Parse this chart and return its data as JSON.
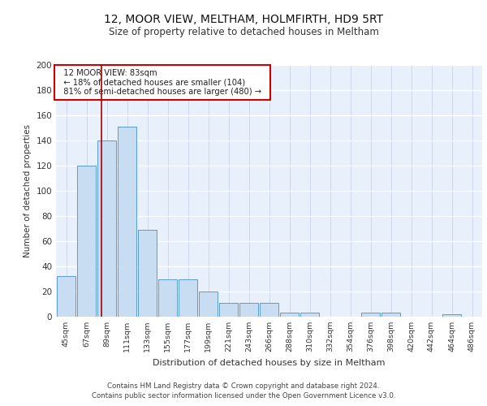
{
  "title1": "12, MOOR VIEW, MELTHAM, HOLMFIRTH, HD9 5RT",
  "title2": "Size of property relative to detached houses in Meltham",
  "xlabel": "Distribution of detached houses by size in Meltham",
  "ylabel": "Number of detached properties",
  "bar_values": [
    32,
    120,
    140,
    151,
    69,
    30,
    30,
    20,
    11,
    11,
    11,
    3,
    3,
    0,
    0,
    3,
    3,
    0,
    0,
    2,
    0
  ],
  "bar_labels": [
    "45sqm",
    "67sqm",
    "89sqm",
    "111sqm",
    "133sqm",
    "155sqm",
    "177sqm",
    "199sqm",
    "221sqm",
    "243sqm",
    "266sqm",
    "288sqm",
    "310sqm",
    "332sqm",
    "354sqm",
    "376sqm",
    "398sqm",
    "420sqm",
    "442sqm",
    "464sqm",
    "486sqm"
  ],
  "bar_color": "#c9ddf2",
  "bar_edge_color": "#5b9bd5",
  "bg_color": "#e8f0fb",
  "grid_color": "#d0d8e8",
  "red_line_x": 1.75,
  "annotation_text": "  12 MOOR VIEW: 83sqm  \n  ← 18% of detached houses are smaller (104)  \n  81% of semi-detached houses are larger (480) →  ",
  "annotation_box_color": "#ffffff",
  "annotation_box_edge": "#cc0000",
  "ylim": [
    0,
    200
  ],
  "yticks": [
    0,
    20,
    40,
    60,
    80,
    100,
    120,
    140,
    160,
    180,
    200
  ],
  "footer1": "Contains HM Land Registry data © Crown copyright and database right 2024.",
  "footer2": "Contains public sector information licensed under the Open Government Licence v3.0."
}
